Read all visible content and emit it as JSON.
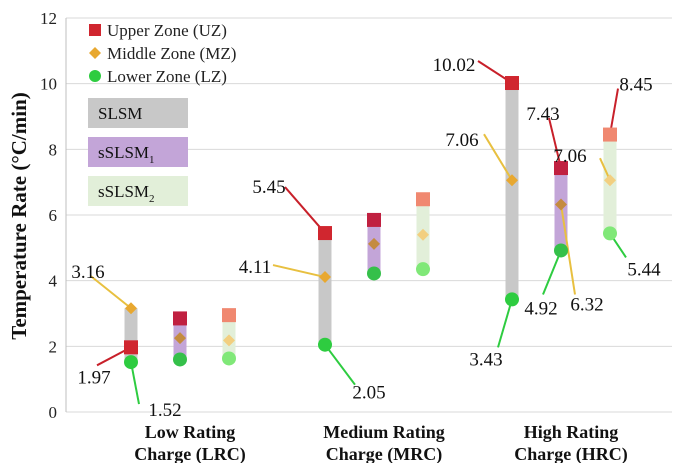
{
  "chart_data": {
    "type": "range",
    "ylabel": "Temperature Rate (°C/min)",
    "ylim": [
      0,
      12
    ],
    "yticks": [
      "0",
      "2",
      "4",
      "6",
      "8",
      "10",
      "12"
    ],
    "grid": "horizontal",
    "groups": [
      {
        "label_line1": "Low Rating",
        "label_line2": "Charge (LRC)"
      },
      {
        "label_line1": "Medium Rating",
        "label_line2": "Charge (MRC)"
      },
      {
        "label_line1": "High Rating",
        "label_line2": "Charge (HRC)"
      }
    ],
    "zones_legend": [
      {
        "name": "Upper Zone (UZ)",
        "color": "#d0262f",
        "marker": "square"
      },
      {
        "name": "Middle Zone (MZ)",
        "color": "#e8a830",
        "marker": "diamond"
      },
      {
        "name": "Lower Zone (LZ)",
        "color": "#2ecc40",
        "marker": "circle"
      }
    ],
    "methods_legend": [
      {
        "name": "SLSM",
        "base": "SLSM",
        "sub": "",
        "color": "#c8c8c8"
      },
      {
        "name": "sSLSM1",
        "base": "sSLSM",
        "sub": "1",
        "color": "#c3a5d8"
      },
      {
        "name": "sSLSM2",
        "base": "sSLSM",
        "sub": "2",
        "color": "#e2efd9"
      }
    ],
    "series": [
      {
        "group": 0,
        "method": 0,
        "uz": 1.97,
        "mz": 3.16,
        "lz": 1.52,
        "uz_color": "#d0262f",
        "lz_color": "#2ecc40",
        "mz_color": "#e8a830"
      },
      {
        "group": 0,
        "method": 1,
        "uz": 2.85,
        "mz": 2.25,
        "lz": 1.6,
        "uz_color": "#c02040",
        "lz_color": "#35c04a",
        "mz_color": "#c48b40"
      },
      {
        "group": 0,
        "method": 2,
        "uz": 2.95,
        "mz": 2.18,
        "lz": 1.63,
        "uz_color": "#f08870",
        "lz_color": "#80e878",
        "mz_color": "#f2cf80"
      },
      {
        "group": 1,
        "method": 0,
        "uz": 5.45,
        "mz": 4.11,
        "lz": 2.05,
        "uz_color": "#d0262f",
        "lz_color": "#2ecc40",
        "mz_color": "#e8a830"
      },
      {
        "group": 1,
        "method": 1,
        "uz": 5.85,
        "mz": 5.12,
        "lz": 4.22,
        "uz_color": "#c02040",
        "lz_color": "#35c04a",
        "mz_color": "#c48b40"
      },
      {
        "group": 1,
        "method": 2,
        "uz": 6.48,
        "mz": 5.4,
        "lz": 4.35,
        "uz_color": "#f08870",
        "lz_color": "#80e878",
        "mz_color": "#f2cf80"
      },
      {
        "group": 2,
        "method": 0,
        "uz": 10.02,
        "mz": 7.06,
        "lz": 3.43,
        "uz_color": "#d0262f",
        "lz_color": "#2ecc40",
        "mz_color": "#e8a830"
      },
      {
        "group": 2,
        "method": 1,
        "uz": 7.43,
        "mz": 6.32,
        "lz": 4.92,
        "uz_color": "#c02040",
        "lz_color": "#35c04a",
        "mz_color": "#c48b40"
      },
      {
        "group": 2,
        "method": 2,
        "uz": 8.45,
        "mz": 7.06,
        "lz": 5.44,
        "uz_color": "#f08870",
        "lz_color": "#80e878",
        "mz_color": "#f2cf80"
      }
    ],
    "annotations": [
      {
        "text": "3.16",
        "series": 0,
        "zone": "mz",
        "color": "#e8c040"
      },
      {
        "text": "1.97",
        "series": 0,
        "zone": "uz",
        "color": "#c8202a"
      },
      {
        "text": "1.52",
        "series": 0,
        "zone": "lz",
        "color": "#2ecc40"
      },
      {
        "text": "5.45",
        "series": 3,
        "zone": "uz",
        "color": "#c8202a"
      },
      {
        "text": "4.11",
        "series": 3,
        "zone": "mz",
        "color": "#e8c040"
      },
      {
        "text": "2.05",
        "series": 3,
        "zone": "lz",
        "color": "#2ecc40"
      },
      {
        "text": "10.02",
        "series": 6,
        "zone": "uz",
        "color": "#c8202a"
      },
      {
        "text": "7.06",
        "series": 6,
        "zone": "mz",
        "color": "#e8c040"
      },
      {
        "text": "3.43",
        "series": 6,
        "zone": "lz",
        "color": "#2ecc40"
      },
      {
        "text": "7.43",
        "series": 7,
        "zone": "uz",
        "color": "#c8202a"
      },
      {
        "text": "4.92",
        "series": 7,
        "zone": "lz",
        "color": "#2ecc40"
      },
      {
        "text": "6.32",
        "series": 7,
        "zone": "mz",
        "color": "#e8c040"
      },
      {
        "text": "7.06",
        "series": 8,
        "zone": "mz",
        "color": "#e8c040"
      },
      {
        "text": "8.45",
        "series": 8,
        "zone": "uz",
        "color": "#c8202a"
      },
      {
        "text": "5.44",
        "series": 8,
        "zone": "lz",
        "color": "#2ecc40"
      }
    ]
  }
}
